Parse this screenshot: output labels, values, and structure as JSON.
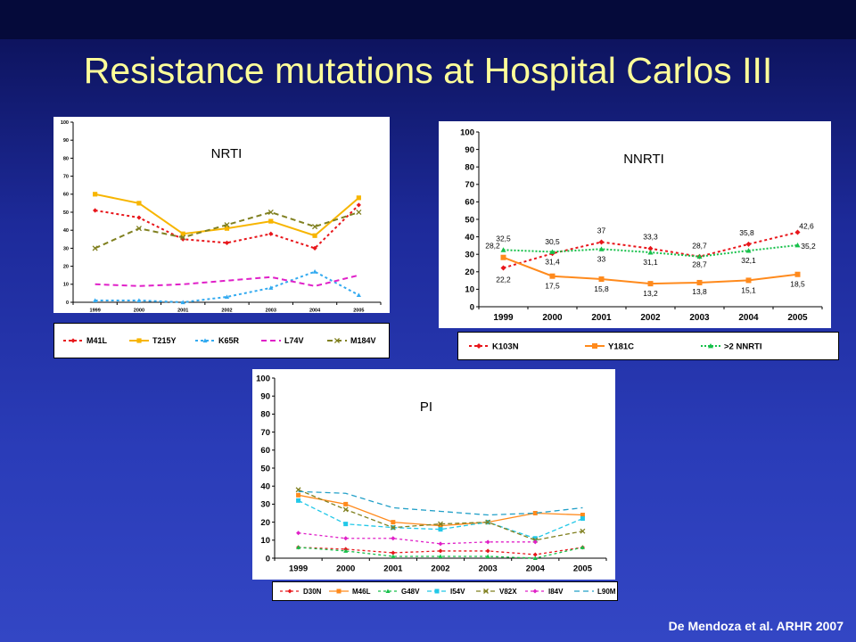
{
  "slide": {
    "title": "Resistance mutations at Hospital Carlos III",
    "credit": "De Mendoza et al. ARHR 2007",
    "colors": {
      "title": "#ffff99",
      "background": "#2a3cb8"
    }
  },
  "chart_data": [
    {
      "type": "line",
      "title": "NRTI",
      "categories": [
        "1999",
        "2000",
        "2001",
        "2002",
        "2003",
        "2004",
        "2005"
      ],
      "ylim": [
        0,
        100
      ],
      "yticks": [
        0,
        10,
        20,
        30,
        40,
        50,
        60,
        70,
        80,
        90,
        100
      ],
      "grid": false,
      "legend_position": "bottom",
      "series": [
        {
          "name": "M41L",
          "color": "#e8161b",
          "dash": "3,3",
          "marker": "diamond",
          "values": [
            51,
            47,
            35,
            33,
            38,
            30,
            54
          ]
        },
        {
          "name": "T215Y",
          "color": "#f7b500",
          "dash": "",
          "marker": "square",
          "values": [
            60,
            55,
            38,
            41,
            45,
            37,
            58
          ]
        },
        {
          "name": "K65R",
          "color": "#33aaf0",
          "dash": "3,3",
          "marker": "triangle",
          "values": [
            1,
            1,
            0,
            3,
            8,
            17,
            4
          ]
        },
        {
          "name": "L74V",
          "color": "#e020c8",
          "dash": "6,4",
          "marker": "none",
          "values": [
            10,
            9,
            10,
            12,
            14,
            9,
            15
          ]
        },
        {
          "name": "M184V",
          "color": "#808020",
          "dash": "6,4",
          "marker": "x",
          "values": [
            30,
            41,
            36,
            43,
            50,
            42,
            50
          ]
        }
      ]
    },
    {
      "type": "line",
      "title": "NNRTI",
      "categories": [
        "1999",
        "2000",
        "2001",
        "2002",
        "2003",
        "2004",
        "2005"
      ],
      "ylim": [
        0,
        100
      ],
      "yticks": [
        0,
        10,
        20,
        30,
        40,
        50,
        60,
        70,
        80,
        90,
        100
      ],
      "grid": false,
      "legend_position": "bottom",
      "series": [
        {
          "name": "K103N",
          "color": "#e8161b",
          "dash": "3,3",
          "marker": "diamond",
          "values": [
            22.2,
            30.5,
            37,
            33.3,
            28.7,
            35.8,
            42.6
          ],
          "labels": [
            "22,2",
            "30,5",
            "37",
            "33,3",
            "28,7",
            "35,8",
            "42,6"
          ]
        },
        {
          "name": "Y181C",
          "color": "#ff8a1c",
          "dash": "",
          "marker": "square",
          "values": [
            28.2,
            17.5,
            15.8,
            13.2,
            13.8,
            15.1,
            18.5
          ],
          "labels": [
            "28,2",
            "17,5",
            "15,8",
            "13,2",
            "13,8",
            "15,1",
            "18,5"
          ]
        },
        {
          "name": ">2 NNRTI",
          "color": "#16c04a",
          "dash": "2,2",
          "marker": "triangle",
          "values": [
            32.5,
            31.4,
            33,
            31.1,
            28.7,
            32.1,
            35.2
          ],
          "labels": [
            "32,5",
            "31,4",
            "33",
            "31,1",
            "28,7",
            "32,1",
            "35,2"
          ]
        }
      ]
    },
    {
      "type": "line",
      "title": "PI",
      "categories": [
        "1999",
        "2000",
        "2001",
        "2002",
        "2003",
        "2004",
        "2005"
      ],
      "ylim": [
        0,
        100
      ],
      "yticks": [
        0,
        10,
        20,
        30,
        40,
        50,
        60,
        70,
        80,
        90,
        100
      ],
      "grid": false,
      "legend_position": "bottom",
      "series": [
        {
          "name": "D30N",
          "color": "#e8161b",
          "dash": "3,3",
          "marker": "diamond",
          "values": [
            6,
            5,
            3,
            4,
            4,
            2,
            6
          ]
        },
        {
          "name": "M46L",
          "color": "#ff8a1c",
          "dash": "",
          "marker": "square",
          "values": [
            35,
            30,
            20,
            18,
            20,
            25,
            24
          ]
        },
        {
          "name": "G48V",
          "color": "#16c04a",
          "dash": "3,3",
          "marker": "triangle",
          "values": [
            6,
            4,
            1,
            1,
            1,
            0,
            6
          ]
        },
        {
          "name": "I54V",
          "color": "#22c8e8",
          "dash": "5,3",
          "marker": "square",
          "values": [
            32,
            19,
            17,
            16,
            20,
            11,
            22
          ]
        },
        {
          "name": "V82X",
          "color": "#808020",
          "dash": "5,3",
          "marker": "x",
          "values": [
            38,
            27,
            17,
            19,
            20,
            10,
            15
          ]
        },
        {
          "name": "I84V",
          "color": "#e020c8",
          "dash": "3,3",
          "marker": "diamond",
          "values": [
            14,
            11,
            11,
            8,
            9,
            9,
            null
          ]
        },
        {
          "name": "L90M",
          "color": "#22a0c8",
          "dash": "6,4",
          "marker": "none",
          "values": [
            37,
            36,
            28,
            26,
            24,
            25,
            28
          ]
        }
      ]
    }
  ]
}
